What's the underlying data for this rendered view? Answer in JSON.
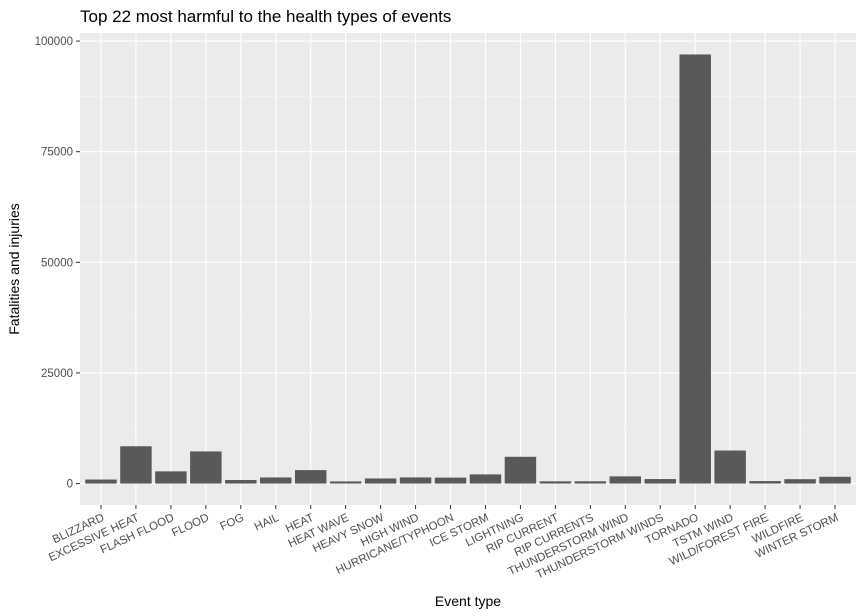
{
  "chart_data": {
    "type": "bar",
    "title": "Top 22 most harmful to the health types of events",
    "xlabel": "Event type",
    "ylabel": "Fatalities and injuries",
    "categories": [
      "BLIZZARD",
      "EXCESSIVE HEAT",
      "FLASH FLOOD",
      "FLOOD",
      "FOG",
      "HAIL",
      "HEAT",
      "HEAT WAVE",
      "HEAVY SNOW",
      "HIGH WIND",
      "HURRICANE/TYPHOON",
      "ICE STORM",
      "LIGHTNING",
      "RIP CURRENT",
      "RIP CURRENTS",
      "THUNDERSTORM WIND",
      "THUNDERSTORM WINDS",
      "TORNADO",
      "TSTM WIND",
      "WILD/FOREST FIRE",
      "WILDFIRE",
      "WINTER STORM"
    ],
    "values": [
      906,
      8428,
      2755,
      7259,
      796,
      1376,
      3037,
      481,
      1148,
      1385,
      1339,
      2064,
      6046,
      501,
      504,
      1621,
      1013,
      96979,
      7461,
      557,
      986,
      1527
    ],
    "ylim": [
      -4849,
      101828
    ],
    "yticks": [
      0,
      25000,
      50000,
      75000,
      100000
    ],
    "grid": true,
    "legend": "none",
    "colors": {
      "bar": "#595959",
      "panel": "#ebebeb",
      "grid_major": "#ffffff",
      "grid_minor": "#f5f5f5"
    }
  }
}
